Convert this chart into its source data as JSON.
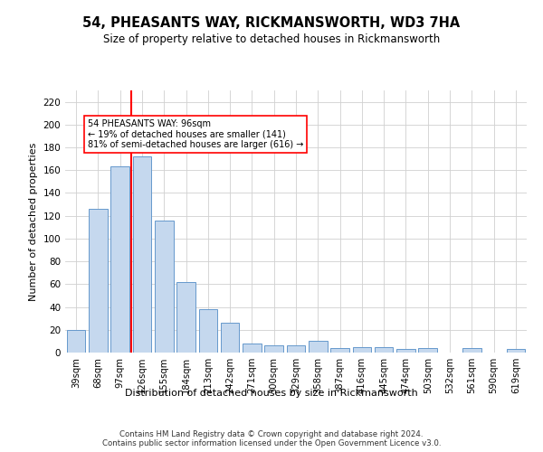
{
  "title": "54, PHEASANTS WAY, RICKMANSWORTH, WD3 7HA",
  "subtitle": "Size of property relative to detached houses in Rickmansworth",
  "xlabel": "Distribution of detached houses by size in Rickmansworth",
  "ylabel": "Number of detached properties",
  "footer_line1": "Contains HM Land Registry data © Crown copyright and database right 2024.",
  "footer_line2": "Contains public sector information licensed under the Open Government Licence v3.0.",
  "categories": [
    "39sqm",
    "68sqm",
    "97sqm",
    "126sqm",
    "155sqm",
    "184sqm",
    "213sqm",
    "242sqm",
    "271sqm",
    "300sqm",
    "329sqm",
    "358sqm",
    "387sqm",
    "416sqm",
    "445sqm",
    "474sqm",
    "503sqm",
    "532sqm",
    "561sqm",
    "590sqm",
    "619sqm"
  ],
  "values": [
    20,
    126,
    163,
    172,
    116,
    62,
    38,
    26,
    8,
    6,
    6,
    10,
    4,
    5,
    5,
    3,
    4,
    0,
    4,
    0,
    3
  ],
  "bar_color": "#c5d8ee",
  "bar_edge_color": "#6699cc",
  "ylim": [
    0,
    230
  ],
  "yticks": [
    0,
    20,
    40,
    60,
    80,
    100,
    120,
    140,
    160,
    180,
    200,
    220
  ],
  "red_line_x": 2.5,
  "annotation_text": "54 PHEASANTS WAY: 96sqm\n← 19% of detached houses are smaller (141)\n81% of semi-detached houses are larger (616) →",
  "grid_color": "#d0d0d0"
}
